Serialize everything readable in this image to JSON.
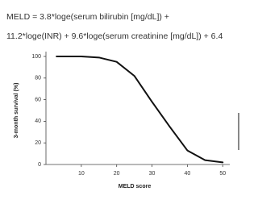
{
  "chart_data": {
    "type": "line",
    "annotations": [
      "MELD = 3.8*loge(serum bilirubin [mg/dL]) +",
      "11.2*loge(INR) + 9.6*loge(serum creatinine [mg/dL]) + 6.4"
    ],
    "xlabel": "MELD score",
    "ylabel": "3-month survival (%)",
    "x": [
      3,
      10,
      15,
      20,
      25,
      30,
      35,
      40,
      45,
      50
    ],
    "values": [
      100,
      100,
      99,
      95,
      82,
      58,
      35,
      13,
      4,
      2
    ],
    "color": "#111111",
    "xlim": [
      0,
      52
    ],
    "xticks": [
      10,
      20,
      30,
      40,
      50
    ],
    "ylim": [
      0,
      100
    ],
    "yticks": [
      0,
      20,
      40,
      60,
      80,
      100
    ]
  }
}
